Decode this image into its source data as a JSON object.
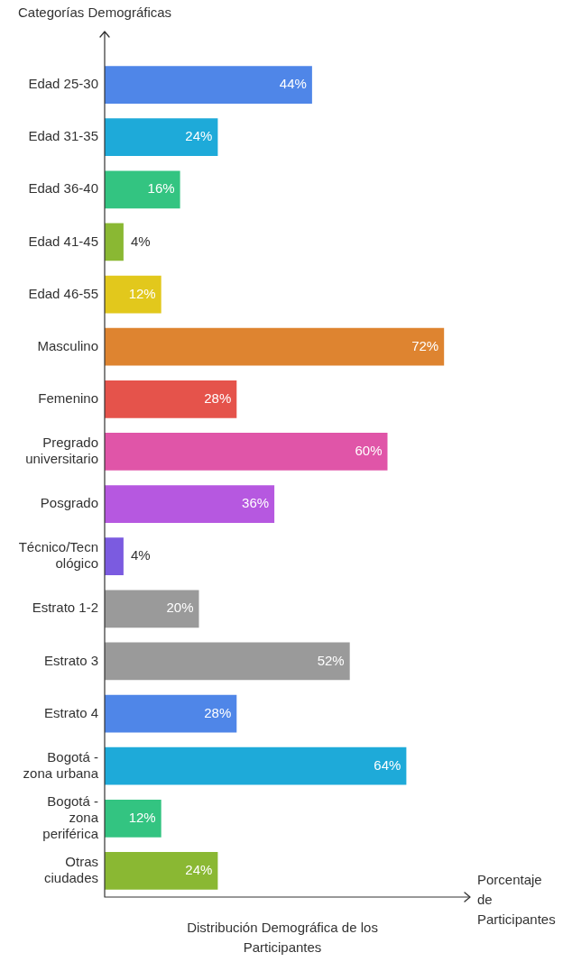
{
  "chart_data": {
    "type": "bar",
    "orientation": "horizontal",
    "title": "Distribución Demográfica de los Participantes",
    "xlabel": "Porcentaje de Participantes",
    "ylabel": "Categorías Demográficas",
    "categories": [
      "Edad 25-30",
      "Edad 31-35",
      "Edad 36-40",
      "Edad 41-45",
      "Edad 46-55",
      "Masculino",
      "Femenino",
      "Pregrado universitario",
      "Posgrado",
      "Técnico/Tecnológico",
      "Estrato 1-2",
      "Estrato 3",
      "Estrato 4",
      "Bogotá - zona urbana",
      "Bogotá - zona periférica",
      "Otras ciudades"
    ],
    "values": [
      44,
      24,
      16,
      4,
      12,
      72,
      28,
      60,
      36,
      4,
      20,
      52,
      28,
      64,
      12,
      24
    ],
    "value_labels": [
      "44%",
      "24%",
      "16%",
      "4%",
      "12%",
      "72%",
      "28%",
      "60%",
      "36%",
      "4%",
      "20%",
      "52%",
      "28%",
      "64%",
      "12%",
      "24%"
    ],
    "colors": [
      "#4f86e8",
      "#1eaad9",
      "#33c481",
      "#8ab833",
      "#e2c81c",
      "#de8430",
      "#e5534b",
      "#e055a8",
      "#b658e0",
      "#7b5be0",
      "#9a9a9a",
      "#9a9a9a",
      "#4f86e8",
      "#1eaad9",
      "#33c481",
      "#8ab833"
    ]
  }
}
